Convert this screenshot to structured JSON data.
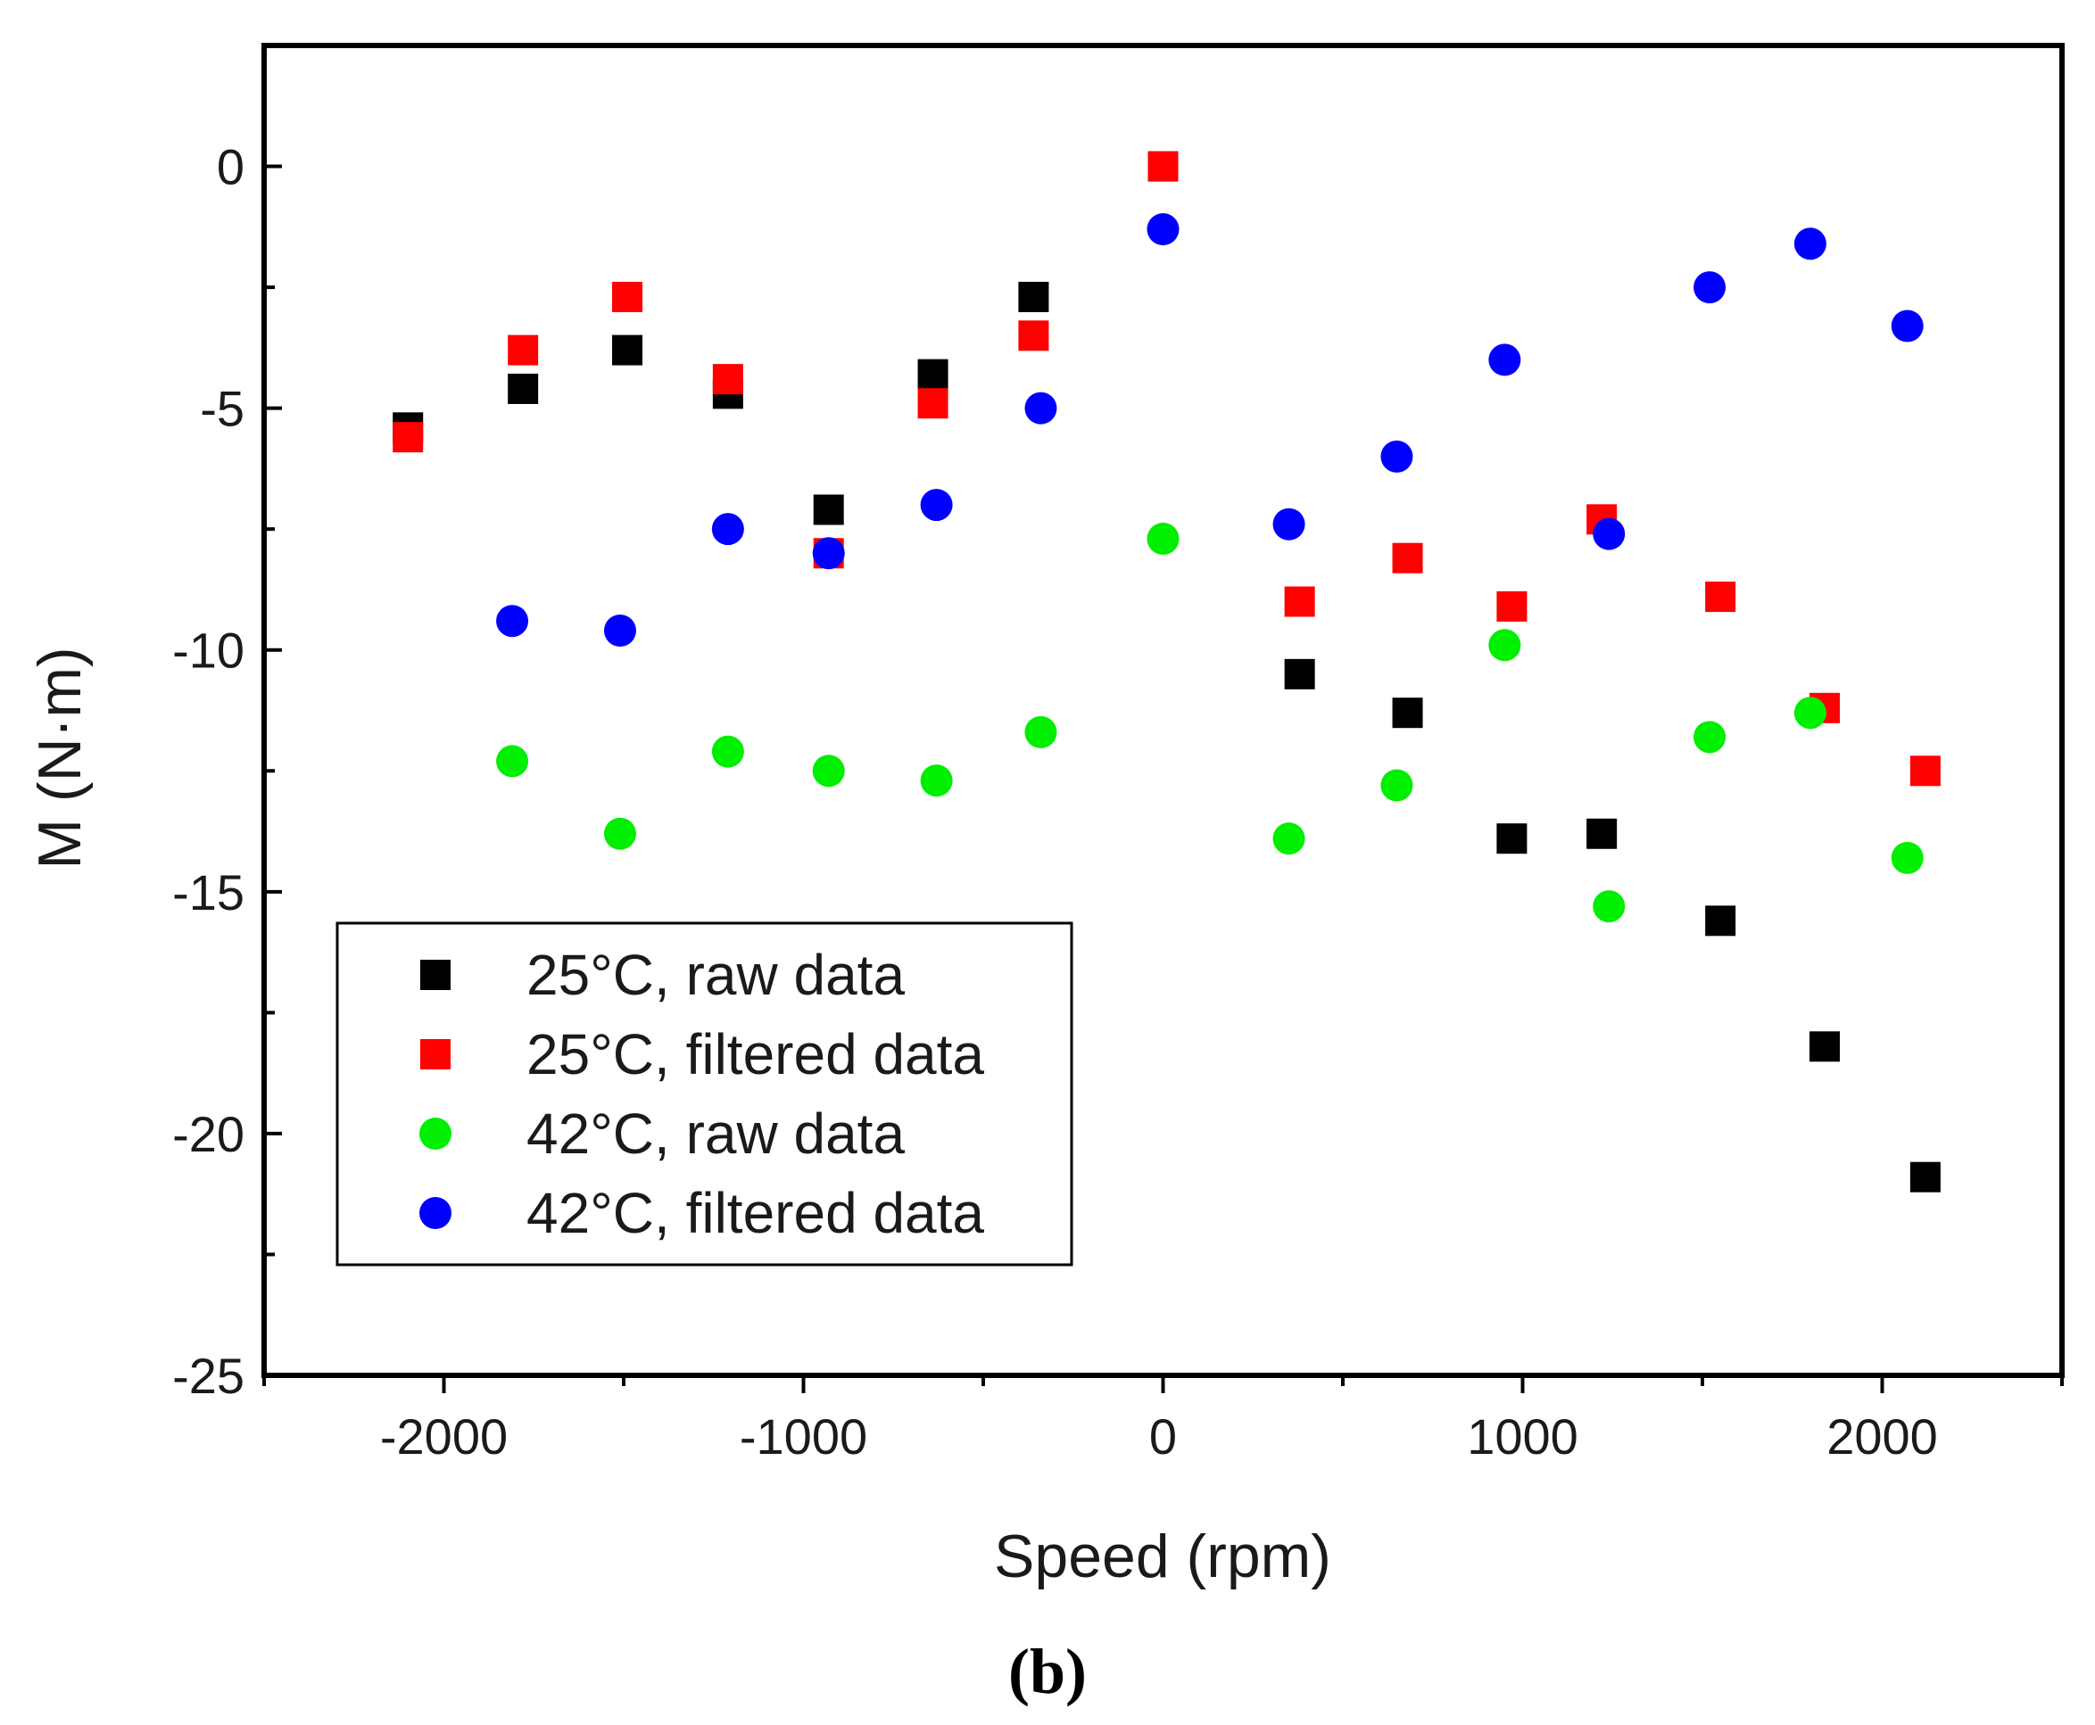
{
  "chart_data": {
    "type": "scatter",
    "title": "",
    "xlabel": "Speed (rpm)",
    "ylabel": "M (N·m)",
    "xlim": [
      -2500,
      2500
    ],
    "ylim": [
      -25,
      2.5
    ],
    "xticks": [
      -2000,
      -1000,
      0,
      1000,
      2000
    ],
    "yticks": [
      0,
      -5,
      -10,
      -15,
      -20,
      -25
    ],
    "caption": "(b)",
    "legend_position": "lower-left",
    "series": [
      {
        "name": "25°C, raw data",
        "marker": "square",
        "color": "#000000",
        "x": [
          -2100,
          -1780,
          -1490,
          -1210,
          -930,
          -640,
          -360,
          0,
          380,
          680,
          970,
          1220,
          1550,
          1840,
          2120
        ],
        "y": [
          -5.4,
          -4.6,
          -3.8,
          -4.7,
          -7.1,
          -4.3,
          -2.7,
          0.0,
          -10.5,
          -11.3,
          -13.9,
          -13.8,
          -15.6,
          -18.2,
          -20.9
        ]
      },
      {
        "name": "25°C, filtered data",
        "marker": "square",
        "color": "#ff0000",
        "x": [
          -2100,
          -1780,
          -1490,
          -1210,
          -930,
          -640,
          -360,
          0,
          380,
          680,
          970,
          1220,
          1550,
          1840,
          2120
        ],
        "y": [
          -5.6,
          -3.8,
          -2.7,
          -4.4,
          -8.0,
          -4.9,
          -3.5,
          0.0,
          -9.0,
          -8.1,
          -9.1,
          -7.3,
          -8.9,
          -11.2,
          -12.5
        ]
      },
      {
        "name": "42°C, raw data",
        "marker": "circle",
        "color": "#00ee00",
        "x": [
          -1810,
          -1510,
          -1210,
          -930,
          -630,
          -340,
          0,
          350,
          650,
          950,
          1240,
          1520,
          1800,
          2070
        ],
        "y": [
          -12.3,
          -13.8,
          -12.1,
          -12.5,
          -12.7,
          -11.7,
          -7.7,
          -13.9,
          -12.8,
          -9.9,
          -15.3,
          -11.8,
          -11.3,
          -14.3
        ]
      },
      {
        "name": "42°C, filtered data",
        "marker": "circle",
        "color": "#0000ff",
        "x": [
          -1810,
          -1510,
          -1210,
          -930,
          -630,
          -340,
          0,
          350,
          650,
          950,
          1240,
          1520,
          1800,
          2070
        ],
        "y": [
          -9.4,
          -9.6,
          -7.5,
          -8.0,
          -7.0,
          -5.0,
          -1.3,
          -7.4,
          -6.0,
          -4.0,
          -7.6,
          -2.5,
          -1.6,
          -3.3
        ]
      }
    ]
  }
}
